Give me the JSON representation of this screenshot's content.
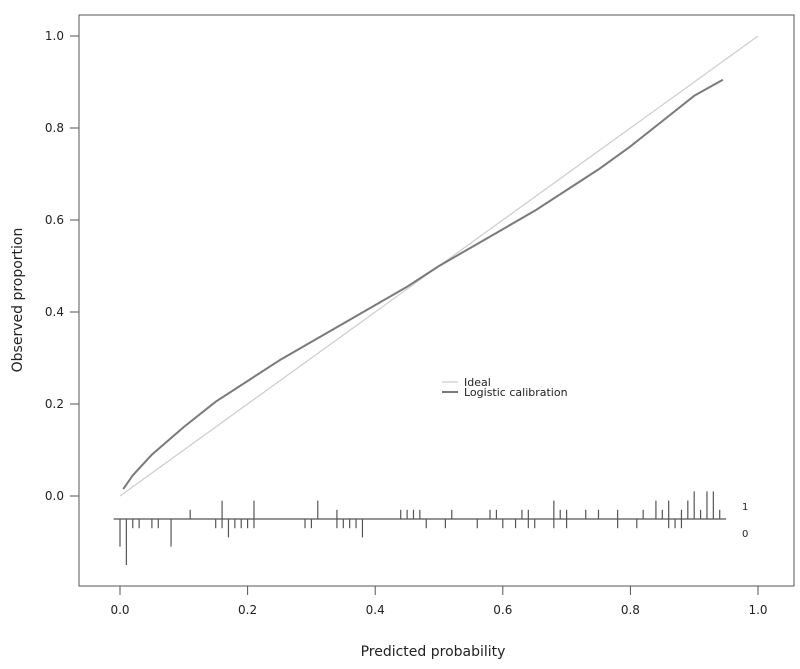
{
  "chart_data": {
    "type": "line",
    "title": "",
    "xlabel": "Predicted probability",
    "ylabel": "Observed proportion",
    "xlim": [
      -0.06,
      1.04
    ],
    "ylim": [
      -0.2,
      1.05
    ],
    "xticks": [
      "0.0",
      "0.2",
      "0.4",
      "0.6",
      "0.8",
      "1.0"
    ],
    "yticks": [
      "0.0",
      "0.2",
      "0.4",
      "0.6",
      "0.8",
      "1.0"
    ],
    "grid": false,
    "legend_position": "center-right",
    "series": [
      {
        "name": "Ideal",
        "color": "#cccccc",
        "x": [
          0.0,
          1.0
        ],
        "y": [
          0.0,
          1.0
        ]
      },
      {
        "name": "Logistic calibration",
        "color": "#7a7a7a",
        "x": [
          0.005,
          0.02,
          0.05,
          0.1,
          0.15,
          0.2,
          0.25,
          0.3,
          0.35,
          0.4,
          0.45,
          0.5,
          0.55,
          0.6,
          0.65,
          0.7,
          0.75,
          0.8,
          0.85,
          0.9,
          0.945
        ],
        "y": [
          0.015,
          0.045,
          0.09,
          0.15,
          0.205,
          0.25,
          0.295,
          0.335,
          0.375,
          0.415,
          0.455,
          0.5,
          0.54,
          0.58,
          0.62,
          0.665,
          0.71,
          0.76,
          0.815,
          0.87,
          0.905
        ]
      }
    ],
    "rug": {
      "baseline_y": -0.05,
      "label_one": "1",
      "label_zero": "0",
      "events": [
        {
          "x": 0.11,
          "h": 0.02
        },
        {
          "x": 0.16,
          "h": 0.04
        },
        {
          "x": 0.21,
          "h": 0.04
        },
        {
          "x": 0.31,
          "h": 0.04
        },
        {
          "x": 0.34,
          "h": 0.02
        },
        {
          "x": 0.44,
          "h": 0.02
        },
        {
          "x": 0.45,
          "h": 0.02
        },
        {
          "x": 0.46,
          "h": 0.02
        },
        {
          "x": 0.47,
          "h": 0.02
        },
        {
          "x": 0.52,
          "h": 0.02
        },
        {
          "x": 0.58,
          "h": 0.02
        },
        {
          "x": 0.59,
          "h": 0.02
        },
        {
          "x": 0.63,
          "h": 0.02
        },
        {
          "x": 0.64,
          "h": 0.02
        },
        {
          "x": 0.68,
          "h": 0.04
        },
        {
          "x": 0.69,
          "h": 0.02
        },
        {
          "x": 0.7,
          "h": 0.02
        },
        {
          "x": 0.73,
          "h": 0.02
        },
        {
          "x": 0.75,
          "h": 0.02
        },
        {
          "x": 0.78,
          "h": 0.02
        },
        {
          "x": 0.82,
          "h": 0.02
        },
        {
          "x": 0.84,
          "h": 0.04
        },
        {
          "x": 0.85,
          "h": 0.02
        },
        {
          "x": 0.86,
          "h": 0.04
        },
        {
          "x": 0.88,
          "h": 0.02
        },
        {
          "x": 0.89,
          "h": 0.04
        },
        {
          "x": 0.9,
          "h": 0.06
        },
        {
          "x": 0.91,
          "h": 0.02
        },
        {
          "x": 0.92,
          "h": 0.06
        },
        {
          "x": 0.93,
          "h": 0.06
        },
        {
          "x": 0.94,
          "h": 0.02
        }
      ],
      "non_events": [
        {
          "x": 0.0,
          "h": 0.06
        },
        {
          "x": 0.01,
          "h": 0.1
        },
        {
          "x": 0.02,
          "h": 0.02
        },
        {
          "x": 0.03,
          "h": 0.02
        },
        {
          "x": 0.05,
          "h": 0.02
        },
        {
          "x": 0.06,
          "h": 0.02
        },
        {
          "x": 0.08,
          "h": 0.06
        },
        {
          "x": 0.15,
          "h": 0.02
        },
        {
          "x": 0.16,
          "h": 0.02
        },
        {
          "x": 0.17,
          "h": 0.04
        },
        {
          "x": 0.18,
          "h": 0.02
        },
        {
          "x": 0.19,
          "h": 0.02
        },
        {
          "x": 0.2,
          "h": 0.02
        },
        {
          "x": 0.21,
          "h": 0.02
        },
        {
          "x": 0.29,
          "h": 0.02
        },
        {
          "x": 0.3,
          "h": 0.02
        },
        {
          "x": 0.34,
          "h": 0.02
        },
        {
          "x": 0.35,
          "h": 0.02
        },
        {
          "x": 0.36,
          "h": 0.02
        },
        {
          "x": 0.37,
          "h": 0.02
        },
        {
          "x": 0.38,
          "h": 0.04
        },
        {
          "x": 0.48,
          "h": 0.02
        },
        {
          "x": 0.51,
          "h": 0.02
        },
        {
          "x": 0.56,
          "h": 0.02
        },
        {
          "x": 0.6,
          "h": 0.02
        },
        {
          "x": 0.62,
          "h": 0.02
        },
        {
          "x": 0.64,
          "h": 0.02
        },
        {
          "x": 0.65,
          "h": 0.02
        },
        {
          "x": 0.68,
          "h": 0.02
        },
        {
          "x": 0.7,
          "h": 0.02
        },
        {
          "x": 0.78,
          "h": 0.02
        },
        {
          "x": 0.81,
          "h": 0.02
        },
        {
          "x": 0.86,
          "h": 0.02
        },
        {
          "x": 0.87,
          "h": 0.02
        },
        {
          "x": 0.88,
          "h": 0.02
        }
      ]
    }
  }
}
